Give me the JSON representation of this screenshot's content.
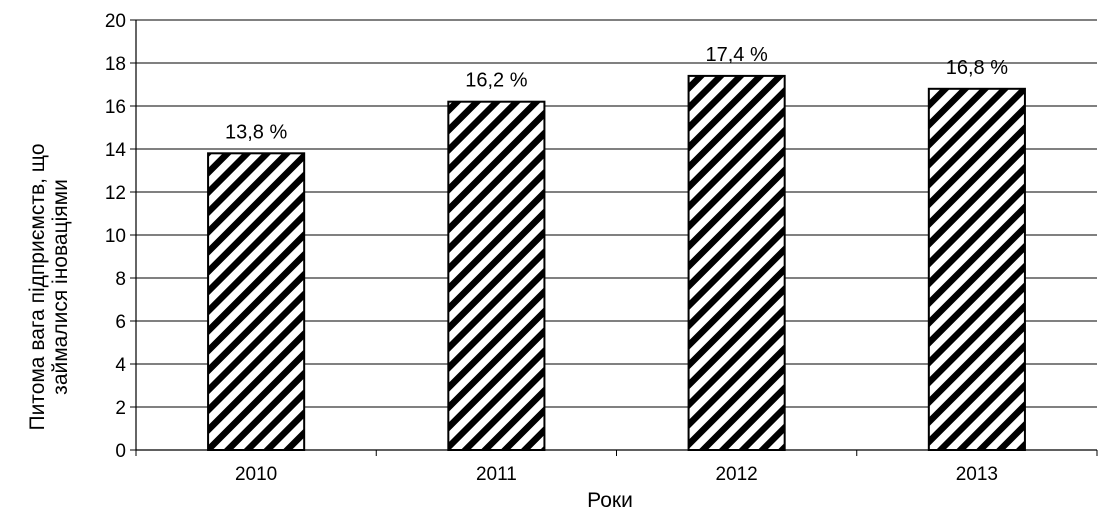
{
  "chart_data": {
    "type": "bar",
    "categories": [
      "2010",
      "2011",
      "2012",
      "2013"
    ],
    "values": [
      13.8,
      16.2,
      17.4,
      16.8
    ],
    "data_labels": [
      "13,8 %",
      "16,2 %",
      "17,4 %",
      "16,8 %"
    ],
    "title": "",
    "xlabel": "Роки",
    "ylabel_lines": [
      "Питома вага підприємств, що",
      "займалися іноваціями"
    ],
    "ylim": [
      0,
      20
    ],
    "y_step": 2,
    "grid": true,
    "legend": "none",
    "bar_pattern": "diagonal-stripes",
    "colors": {
      "bar_stroke": "#000000",
      "stripe": "#000000",
      "bar_fill": "#ffffff",
      "grid": "#000000"
    }
  }
}
